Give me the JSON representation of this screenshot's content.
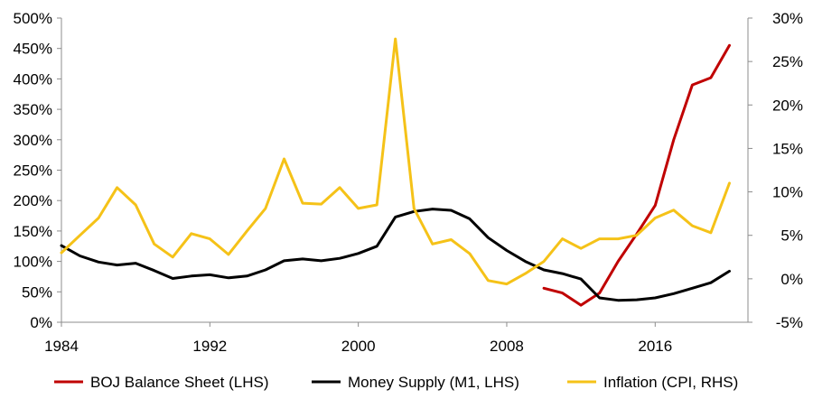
{
  "chart_data": {
    "type": "line",
    "title": "",
    "xlabel": "",
    "ylabel": "",
    "xlim": [
      1984,
      2021
    ],
    "ylim_left": [
      0,
      500
    ],
    "ylim_right": [
      -5,
      30
    ],
    "x_ticks": [
      1984,
      1992,
      2000,
      2008,
      2016
    ],
    "x_tick_labels": [
      "1984",
      "1992",
      "2000",
      "2008",
      "2016"
    ],
    "y_left_ticks": [
      0,
      50,
      100,
      150,
      200,
      250,
      300,
      350,
      400,
      450,
      500
    ],
    "y_left_tick_labels": [
      "0%",
      "50%",
      "100%",
      "150%",
      "200%",
      "250%",
      "300%",
      "350%",
      "400%",
      "450%",
      "500%"
    ],
    "y_right_ticks": [
      -5,
      0,
      5,
      10,
      15,
      20,
      25,
      30
    ],
    "y_right_tick_labels": [
      "-5%",
      "0%",
      "5%",
      "10%",
      "15%",
      "20%",
      "25%",
      "30%"
    ],
    "grid": false,
    "legend_position": "bottom",
    "series": [
      {
        "name": "BOJ Balance Sheet (LHS)",
        "axis": "left",
        "color": "#c00000",
        "x": [
          2010,
          2011,
          2012,
          2013,
          2014,
          2015,
          2016,
          2017,
          2018,
          2019,
          2020
        ],
        "y": [
          56,
          48,
          28,
          48,
          100,
          145,
          192,
          300,
          390,
          402,
          455
        ]
      },
      {
        "name": "Money Supply (M1, LHS)",
        "axis": "left",
        "color": "#000000",
        "x": [
          1984,
          1985,
          1986,
          1987,
          1988,
          1989,
          1990,
          1991,
          1992,
          1993,
          1994,
          1995,
          1996,
          1997,
          1998,
          1999,
          2000,
          2001,
          2002,
          2003,
          2004,
          2005,
          2006,
          2007,
          2008,
          2009,
          2010,
          2011,
          2012,
          2013,
          2014,
          2015,
          2016,
          2017,
          2018,
          2019,
          2020
        ],
        "y": [
          126,
          109,
          99,
          94,
          97,
          85,
          72,
          76,
          78,
          73,
          76,
          86,
          101,
          104,
          101,
          105,
          113,
          125,
          173,
          182,
          186,
          184,
          170,
          139,
          118,
          100,
          86,
          80,
          71,
          40,
          36,
          37,
          40,
          47,
          56,
          65,
          84
        ]
      },
      {
        "name": "Inflation (CPI, RHS)",
        "axis": "right",
        "color": "#f5c218",
        "x": [
          1984,
          1985,
          1986,
          1987,
          1988,
          1989,
          1990,
          1991,
          1992,
          1993,
          1994,
          1995,
          1996,
          1997,
          1998,
          1999,
          2000,
          2001,
          2002,
          2003,
          2004,
          2005,
          2006,
          2007,
          2008,
          2009,
          2010,
          2011,
          2012,
          2013,
          2014,
          2015,
          2016,
          2017,
          2018,
          2019,
          2020
        ],
        "y": [
          3,
          5,
          7,
          10.5,
          8.5,
          4,
          2.5,
          5.2,
          4.6,
          2.8,
          5.5,
          8.1,
          13.8,
          8.7,
          8.6,
          10.5,
          8.1,
          8.5,
          27.6,
          8.1,
          4,
          4.5,
          2.9,
          -0.2,
          -0.6,
          0.6,
          2,
          4.6,
          3.5,
          4.6,
          4.6,
          5,
          7,
          7.9,
          6.1,
          5.3,
          11
        ]
      }
    ]
  }
}
